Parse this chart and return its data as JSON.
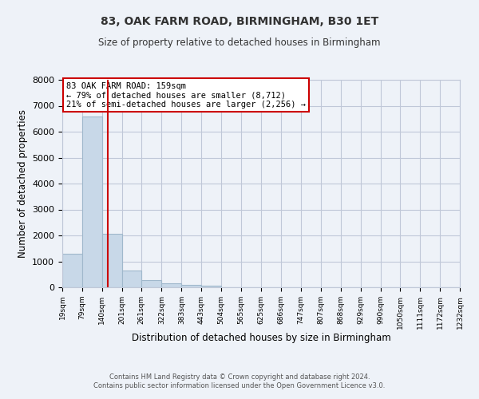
{
  "title1": "83, OAK FARM ROAD, BIRMINGHAM, B30 1ET",
  "title2": "Size of property relative to detached houses in Birmingham",
  "xlabel": "Distribution of detached houses by size in Birmingham",
  "ylabel": "Number of detached properties",
  "bin_edges": [
    19,
    79,
    140,
    201,
    261,
    322,
    383,
    443,
    504,
    565,
    625,
    686,
    747,
    807,
    868,
    929,
    990,
    1050,
    1111,
    1172,
    1232
  ],
  "bar_heights": [
    1300,
    6600,
    2050,
    650,
    280,
    140,
    100,
    60,
    0,
    0,
    0,
    0,
    0,
    0,
    0,
    0,
    0,
    0,
    0,
    0
  ],
  "bar_color": "#c8d8e8",
  "bar_edge_color": "#a0b8cc",
  "property_size": 159,
  "vline_color": "#cc0000",
  "ylim": [
    0,
    8000
  ],
  "yticks": [
    0,
    1000,
    2000,
    3000,
    4000,
    5000,
    6000,
    7000,
    8000
  ],
  "annotation_title": "83 OAK FARM ROAD: 159sqm",
  "annotation_line1": "← 79% of detached houses are smaller (8,712)",
  "annotation_line2": "21% of semi-detached houses are larger (2,256) →",
  "annotation_box_color": "#ffffff",
  "annotation_box_edge": "#cc0000",
  "grid_color": "#c0c8d8",
  "bg_color": "#eef2f8",
  "footer1": "Contains HM Land Registry data © Crown copyright and database right 2024.",
  "footer2": "Contains public sector information licensed under the Open Government Licence v3.0."
}
